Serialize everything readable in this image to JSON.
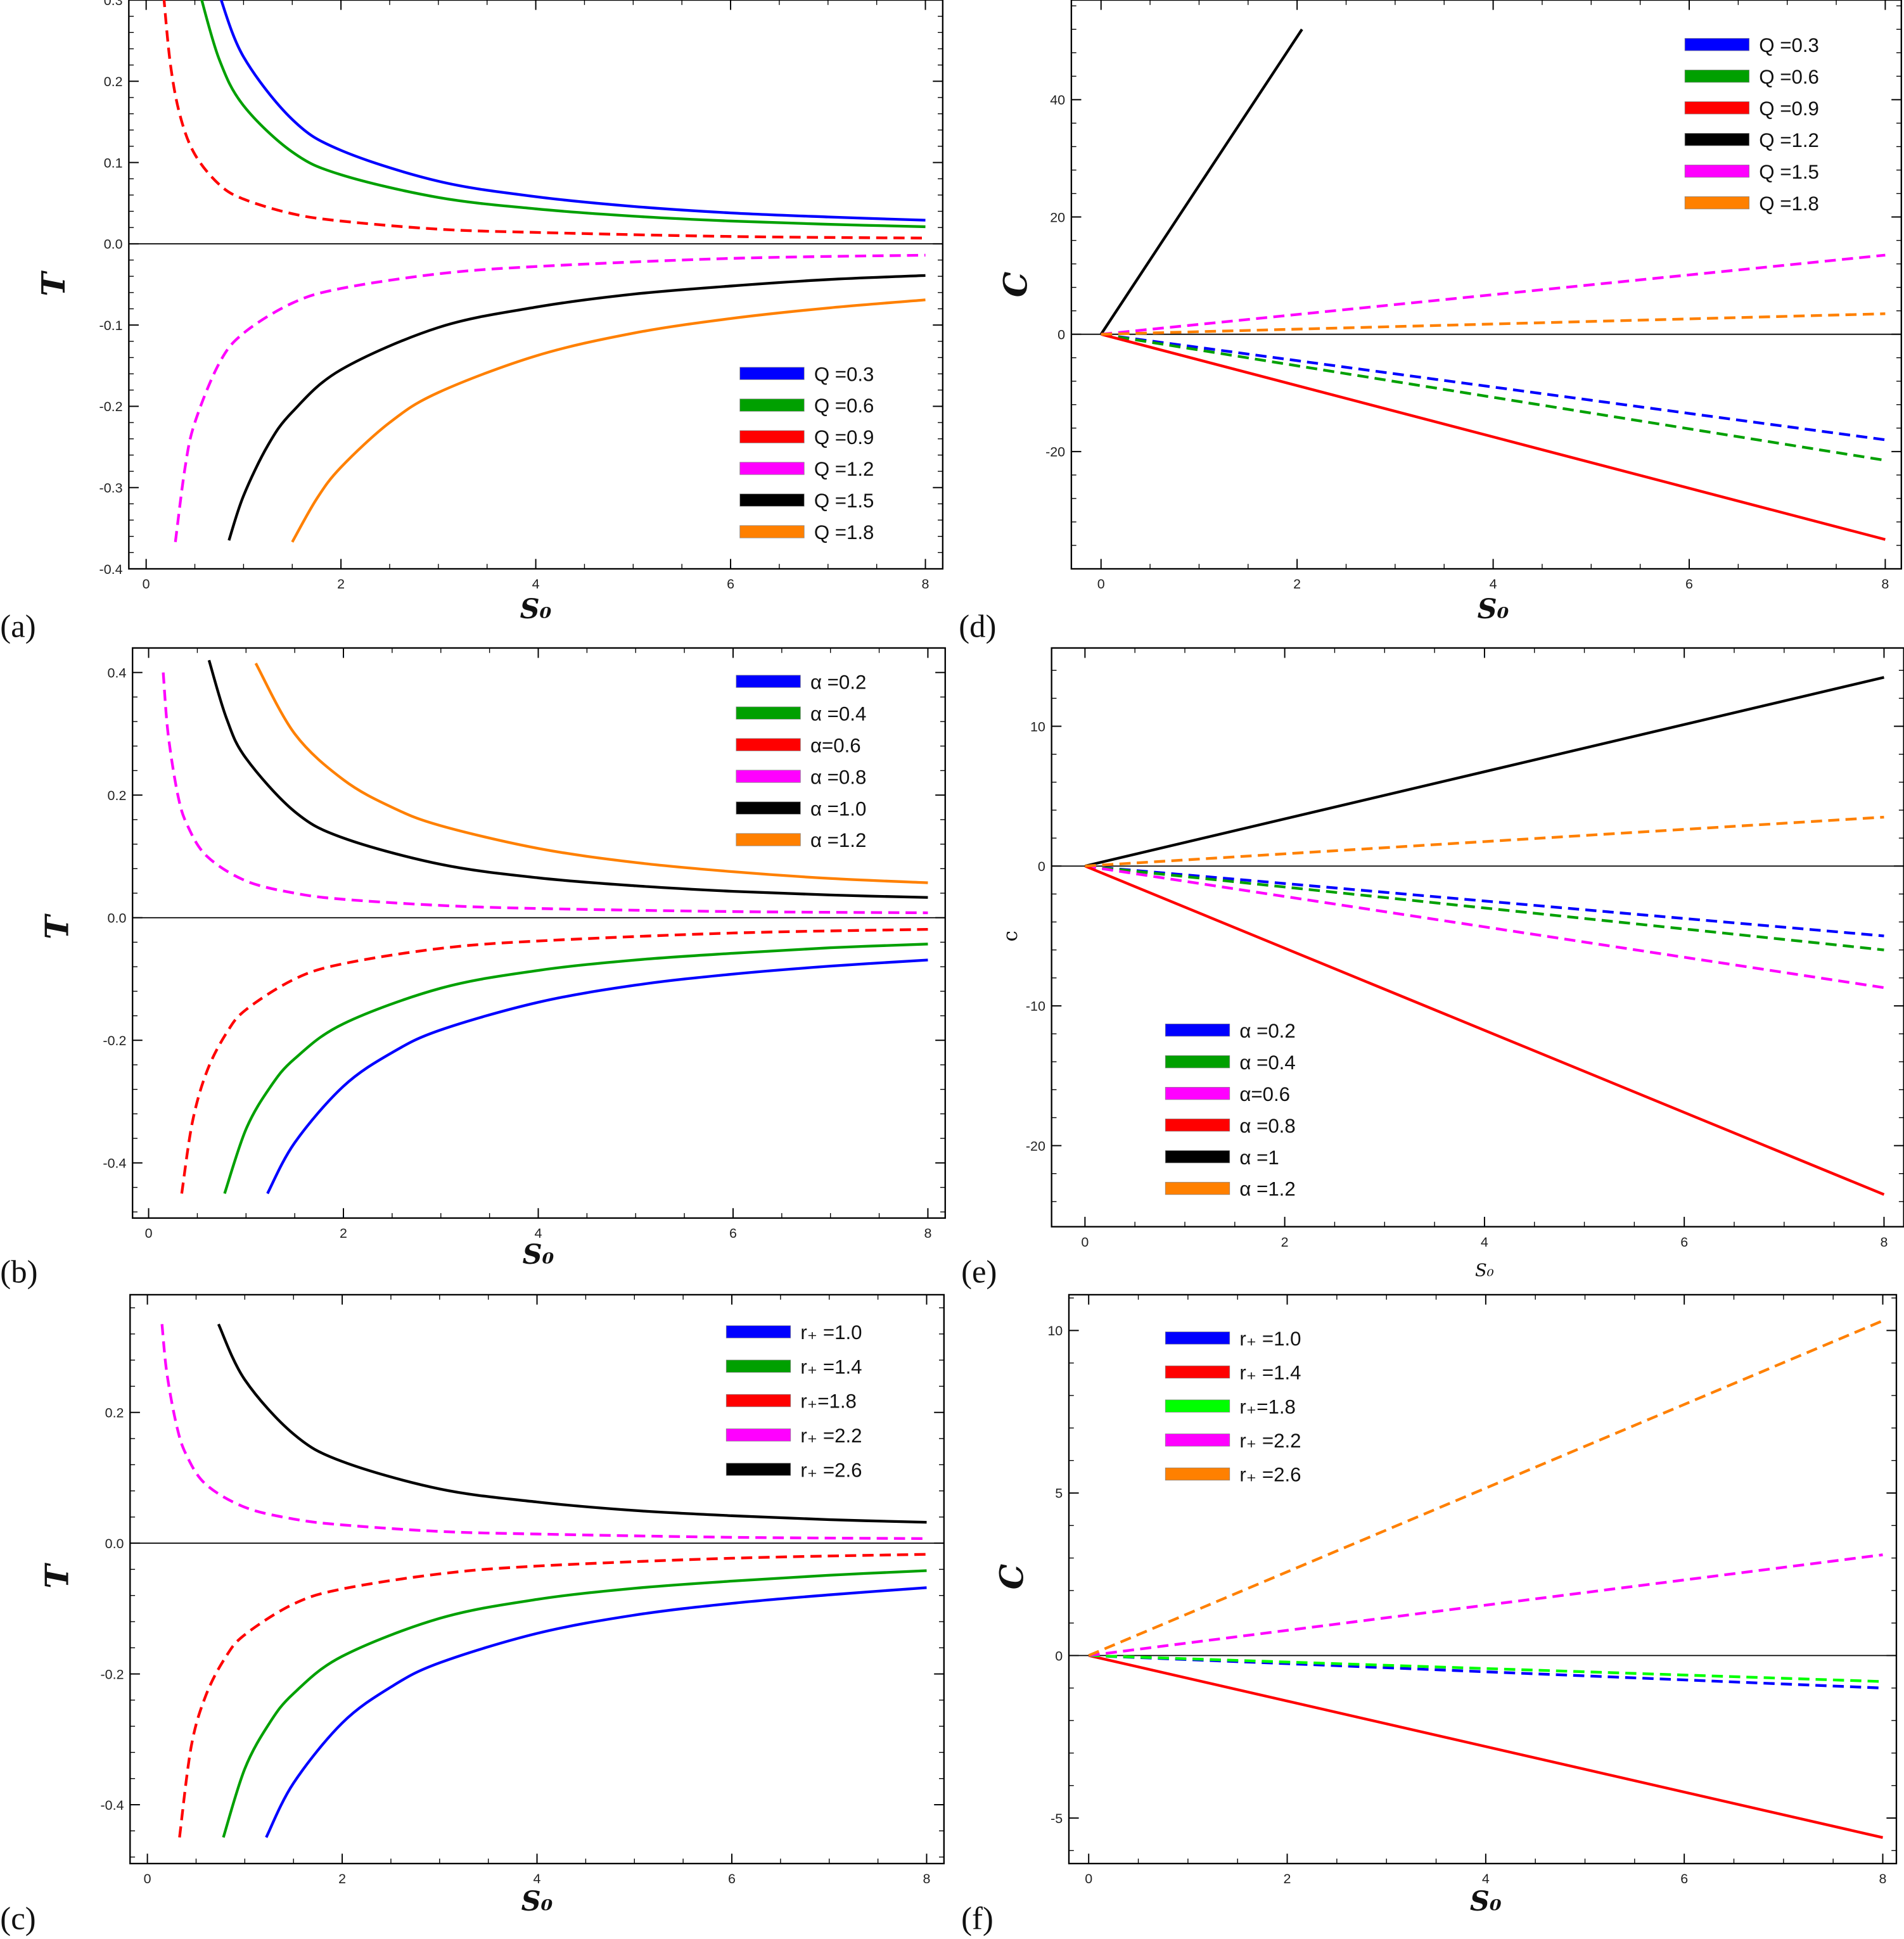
{
  "chart_data": [
    {
      "panel": "(a)",
      "type": "line",
      "xlabel": "S₀",
      "ylabel": "T",
      "xlim": [
        0,
        8
      ],
      "ylim": [
        -0.4,
        0.3
      ],
      "xticks": [
        "0",
        "2",
        "4",
        "6",
        "8"
      ],
      "yticks": [
        "-0.4",
        "-0.3",
        "-0.2",
        "-0.1",
        "0.0",
        "0.1",
        "0.2",
        "0.3"
      ],
      "legend_position": "bottom-right",
      "series": [
        {
          "name": "Q =0.3",
          "color": "#0000ff",
          "dashed": false,
          "x": [
            0.75,
            1,
            1.5,
            2,
            3,
            4,
            5,
            6,
            7,
            8
          ],
          "y": [
            0.307,
            0.23,
            0.153,
            0.115,
            0.077,
            0.058,
            0.046,
            0.038,
            0.033,
            0.029
          ]
        },
        {
          "name": "Q =0.6",
          "color": "#00a000",
          "dashed": false,
          "x": [
            0.55,
            0.75,
            1,
            1.5,
            2,
            3,
            4,
            5,
            6,
            7,
            8
          ],
          "y": [
            0.309,
            0.227,
            0.17,
            0.113,
            0.085,
            0.057,
            0.043,
            0.034,
            0.028,
            0.024,
            0.021
          ]
        },
        {
          "name": "Q =0.9",
          "color": "#ff0000",
          "dashed": true,
          "x": [
            0.18,
            0.25,
            0.35,
            0.5,
            0.75,
            1,
            1.5,
            2,
            3,
            4,
            6,
            8
          ],
          "y": [
            0.305,
            0.22,
            0.157,
            0.11,
            0.073,
            0.055,
            0.037,
            0.028,
            0.018,
            0.014,
            0.009,
            0.007
          ]
        },
        {
          "name": "Q =1.2",
          "color": "#ff00ff",
          "dashed": true,
          "x": [
            0.3,
            0.4,
            0.5,
            0.75,
            1,
            1.5,
            2,
            3,
            4,
            6,
            8
          ],
          "y": [
            -0.367,
            -0.275,
            -0.22,
            -0.147,
            -0.11,
            -0.073,
            -0.055,
            -0.037,
            -0.028,
            -0.018,
            -0.014
          ]
        },
        {
          "name": "Q =1.5",
          "color": "#000000",
          "dashed": false,
          "x": [
            0.85,
            1,
            1.25,
            1.5,
            2,
            3,
            4,
            5,
            6,
            7,
            8
          ],
          "y": [
            -0.365,
            -0.31,
            -0.248,
            -0.207,
            -0.155,
            -0.103,
            -0.078,
            -0.062,
            -0.052,
            -0.044,
            -0.039
          ]
        },
        {
          "name": "Q =1.8",
          "color": "#ff8000",
          "dashed": false,
          "x": [
            1.5,
            1.75,
            2,
            2.5,
            3,
            4,
            5,
            6,
            7,
            8
          ],
          "y": [
            -0.367,
            -0.314,
            -0.275,
            -0.22,
            -0.183,
            -0.138,
            -0.11,
            -0.092,
            -0.079,
            -0.069
          ]
        }
      ]
    },
    {
      "panel": "(d)",
      "type": "line",
      "xlabel": "S₀",
      "ylabel": "C",
      "xlim": [
        0,
        8
      ],
      "ylim": [
        -40,
        57
      ],
      "xticks": [
        "0",
        "2",
        "4",
        "6",
        "8"
      ],
      "yticks": [
        "-20",
        "0",
        "20",
        "40"
      ],
      "legend_position": "top-right",
      "series": [
        {
          "name": "Q =0.3",
          "color": "#0000ff",
          "dashed": true,
          "x": [
            0,
            8
          ],
          "y": [
            0,
            -18
          ]
        },
        {
          "name": "Q =0.6",
          "color": "#00a000",
          "dashed": true,
          "x": [
            0,
            8
          ],
          "y": [
            0,
            -21.5
          ]
        },
        {
          "name": "Q =0.9",
          "color": "#ff0000",
          "dashed": false,
          "x": [
            0,
            8
          ],
          "y": [
            0,
            -35
          ]
        },
        {
          "name": "Q =1.2",
          "color": "#000000",
          "dashed": false,
          "x": [
            0,
            2.05
          ],
          "y": [
            0,
            52
          ]
        },
        {
          "name": "Q =1.5",
          "color": "#ff00ff",
          "dashed": true,
          "x": [
            0,
            8
          ],
          "y": [
            0,
            13.5
          ]
        },
        {
          "name": "Q =1.8",
          "color": "#ff8000",
          "dashed": true,
          "x": [
            0,
            8
          ],
          "y": [
            0,
            3.5
          ]
        }
      ]
    },
    {
      "panel": "(b)",
      "type": "line",
      "xlabel": "S₀",
      "ylabel": "T",
      "xlim": [
        0,
        8
      ],
      "ylim": [
        -0.49,
        0.44
      ],
      "xticks": [
        "0",
        "2",
        "4",
        "6",
        "8"
      ],
      "yticks": [
        "-0.4",
        "-0.2",
        "0.0",
        "0.2",
        "0.4"
      ],
      "legend_position": "top-right",
      "series": [
        {
          "name": "α =0.2",
          "color": "#0000ff",
          "dashed": false,
          "x": [
            1.22,
            1.5,
            2,
            2.5,
            3,
            4,
            5,
            6,
            7,
            8
          ],
          "y": [
            -0.45,
            -0.367,
            -0.275,
            -0.22,
            -0.183,
            -0.138,
            -0.11,
            -0.092,
            -0.079,
            -0.069
          ]
        },
        {
          "name": "α =0.4",
          "color": "#00a000",
          "dashed": false,
          "x": [
            0.78,
            1,
            1.25,
            1.5,
            2,
            3,
            4,
            5,
            6,
            7,
            8
          ],
          "y": [
            -0.45,
            -0.345,
            -0.276,
            -0.23,
            -0.173,
            -0.115,
            -0.086,
            -0.069,
            -0.058,
            -0.049,
            -0.043
          ]
        },
        {
          "name": "α=0.6",
          "color": "#ff0000",
          "dashed": true,
          "x": [
            0.34,
            0.45,
            0.6,
            0.8,
            1,
            1.5,
            2,
            3,
            4,
            6,
            8
          ],
          "y": [
            -0.45,
            -0.333,
            -0.25,
            -0.188,
            -0.15,
            -0.1,
            -0.075,
            -0.05,
            -0.038,
            -0.025,
            -0.019
          ]
        },
        {
          "name": "α =0.8",
          "color": "#ff00ff",
          "dashed": true,
          "x": [
            0.15,
            0.2,
            0.3,
            0.4,
            0.6,
            1,
            1.5,
            2,
            3,
            4,
            6,
            8
          ],
          "y": [
            0.4,
            0.3,
            0.2,
            0.15,
            0.1,
            0.06,
            0.04,
            0.03,
            0.02,
            0.015,
            0.01,
            0.008
          ]
        },
        {
          "name": "α =1.0",
          "color": "#000000",
          "dashed": false,
          "x": [
            0.62,
            0.8,
            1,
            1.5,
            2,
            3,
            4,
            5,
            6,
            7,
            8
          ],
          "y": [
            0.42,
            0.325,
            0.26,
            0.173,
            0.13,
            0.087,
            0.065,
            0.052,
            0.043,
            0.037,
            0.033
          ]
        },
        {
          "name": "α =1.2",
          "color": "#ff8000",
          "dashed": false,
          "x": [
            1.1,
            1.5,
            2,
            2.5,
            3,
            4,
            5,
            6,
            7,
            8
          ],
          "y": [
            0.415,
            0.3,
            0.225,
            0.18,
            0.15,
            0.113,
            0.09,
            0.075,
            0.064,
            0.057
          ]
        }
      ]
    },
    {
      "panel": "(e)",
      "type": "line",
      "xlabel": "S₀",
      "ylabel": "c",
      "xlim": [
        0,
        8
      ],
      "ylim": [
        -25.8,
        15.6
      ],
      "xticks": [
        "0",
        "2",
        "4",
        "6",
        "8"
      ],
      "yticks": [
        "-20",
        "-10",
        "0",
        "10"
      ],
      "legend_position": "bottom-left",
      "series": [
        {
          "name": "α =0.2",
          "color": "#0000ff",
          "dashed": true,
          "x": [
            0,
            8
          ],
          "y": [
            0,
            -5
          ]
        },
        {
          "name": "α =0.4",
          "color": "#00a000",
          "dashed": true,
          "x": [
            0,
            8
          ],
          "y": [
            0,
            -6
          ]
        },
        {
          "name": "α=0.6",
          "color": "#ff00ff",
          "dashed": true,
          "x": [
            0,
            8
          ],
          "y": [
            0,
            -8.7
          ]
        },
        {
          "name": "α =0.8",
          "color": "#ff0000",
          "dashed": false,
          "x": [
            0,
            8
          ],
          "y": [
            0,
            -23.5
          ]
        },
        {
          "name": "α =1",
          "color": "#000000",
          "dashed": false,
          "x": [
            0,
            8
          ],
          "y": [
            0,
            13.5
          ]
        },
        {
          "name": "α =1.2",
          "color": "#ff8000",
          "dashed": true,
          "x": [
            0,
            8
          ],
          "y": [
            0,
            3.5
          ]
        }
      ]
    },
    {
      "panel": "(c)",
      "type": "line",
      "xlabel": "S₀",
      "ylabel": "T",
      "xlim": [
        0,
        8
      ],
      "ylim": [
        -0.49,
        0.38
      ],
      "xticks": [
        "0",
        "2",
        "4",
        "6",
        "8"
      ],
      "yticks": [
        "-0.4",
        "-0.2",
        "0.0",
        "0.2"
      ],
      "legend_position": "top-right",
      "series": [
        {
          "name": "r₊ =1.0",
          "color": "#0000ff",
          "dashed": false,
          "x": [
            1.22,
            1.5,
            2,
            2.5,
            3,
            4,
            5,
            6,
            7,
            8
          ],
          "y": [
            -0.45,
            -0.367,
            -0.275,
            -0.22,
            -0.183,
            -0.138,
            -0.11,
            -0.092,
            -0.079,
            -0.068
          ]
        },
        {
          "name": "r₊ =1.4",
          "color": "#00a000",
          "dashed": false,
          "x": [
            0.78,
            1,
            1.25,
            1.5,
            2,
            3,
            4,
            5,
            6,
            7,
            8
          ],
          "y": [
            -0.45,
            -0.345,
            -0.276,
            -0.23,
            -0.173,
            -0.115,
            -0.086,
            -0.069,
            -0.058,
            -0.049,
            -0.042
          ]
        },
        {
          "name": "r₊=1.8",
          "color": "#ff0000",
          "dashed": true,
          "x": [
            0.33,
            0.45,
            0.6,
            0.8,
            1,
            1.5,
            2,
            3,
            4,
            6,
            8
          ],
          "y": [
            -0.45,
            -0.311,
            -0.233,
            -0.175,
            -0.14,
            -0.093,
            -0.07,
            -0.047,
            -0.035,
            -0.023,
            -0.017
          ]
        },
        {
          "name": "r₊ =2.2",
          "color": "#ff00ff",
          "dashed": true,
          "x": [
            0.15,
            0.2,
            0.3,
            0.4,
            0.6,
            1,
            1.5,
            2,
            3,
            4,
            6,
            8
          ],
          "y": [
            0.335,
            0.26,
            0.18,
            0.135,
            0.09,
            0.055,
            0.037,
            0.028,
            0.018,
            0.014,
            0.009,
            0.007
          ]
        },
        {
          "name": "r₊ =2.6",
          "color": "#000000",
          "dashed": false,
          "x": [
            0.73,
            1,
            1.5,
            2,
            3,
            4,
            5,
            6,
            7,
            8
          ],
          "y": [
            0.335,
            0.25,
            0.167,
            0.125,
            0.083,
            0.063,
            0.05,
            0.042,
            0.036,
            0.032
          ]
        }
      ]
    },
    {
      "panel": "(f)",
      "type": "line",
      "xlabel": "S₀",
      "ylabel": "C",
      "xlim": [
        0,
        8
      ],
      "ylim": [
        -6.4,
        11.1
      ],
      "xticks": [
        "0",
        "2",
        "4",
        "6",
        "8"
      ],
      "yticks": [
        "-5",
        "0",
        "5",
        "10"
      ],
      "legend_position": "top-left",
      "series": [
        {
          "name": "r₊ =1.0",
          "color": "#0000ff",
          "dashed": true,
          "x": [
            0,
            8
          ],
          "y": [
            0,
            -1.0
          ]
        },
        {
          "name": "r₊ =1.4",
          "color": "#ff0000",
          "dashed": false,
          "x": [
            0,
            8
          ],
          "y": [
            0,
            -5.6
          ]
        },
        {
          "name": "r₊=1.8",
          "color": "#00ff00",
          "dashed": true,
          "x": [
            0,
            8
          ],
          "y": [
            0,
            -0.8
          ]
        },
        {
          "name": "r₊ =2.2",
          "color": "#ff00ff",
          "dashed": true,
          "x": [
            0,
            8
          ],
          "y": [
            0,
            3.1
          ]
        },
        {
          "name": "r₊ =2.6",
          "color": "#ff8000",
          "dashed": true,
          "x": [
            0,
            8
          ],
          "y": [
            0,
            10.3
          ]
        }
      ]
    }
  ]
}
